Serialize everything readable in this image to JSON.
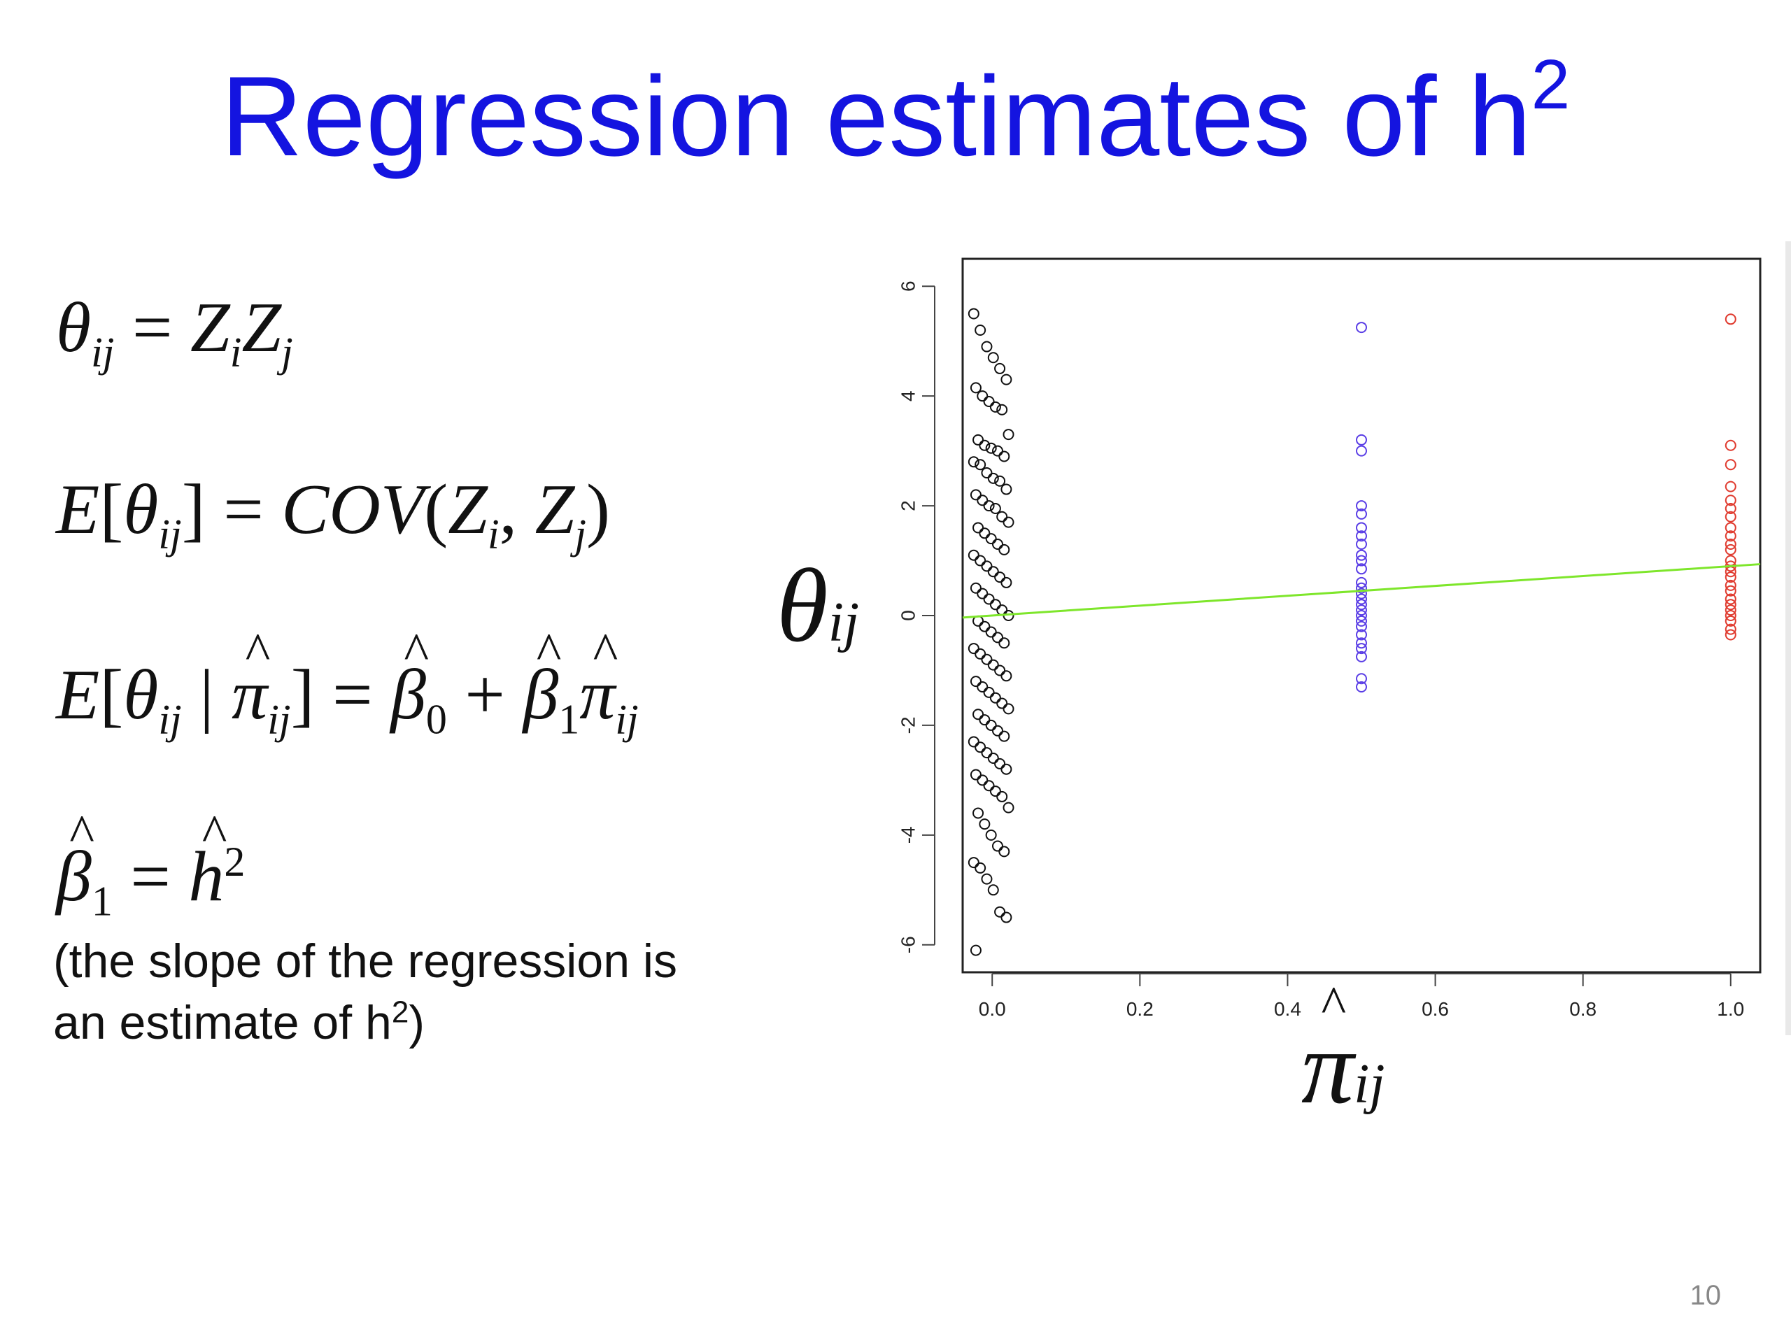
{
  "slide": {
    "title": "Regression estimates of h",
    "title_sup": "2",
    "page_number": "10",
    "equations": [
      "θij = ZiZj",
      "E[θij] = COV(Zi, Zj)",
      "E[θij | π̂ij] = β̂0 + β̂1π̂ij",
      "β̂1 = ĥ2"
    ],
    "caption": {
      "line1": "(the slope of the regression is",
      "line2_pre": "an estimate of h",
      "line2_sup": "2",
      "line2_post": ")"
    }
  },
  "chart_data": {
    "type": "scatter",
    "xlabel": "π̂ij",
    "ylabel": "θij",
    "xlim": [
      -0.04,
      1.04
    ],
    "ylim": [
      -6.5,
      6.5
    ],
    "xticks": [
      "0.0",
      "0.2",
      "0.4",
      "0.6",
      "0.8",
      "1.0"
    ],
    "yticks": [
      "-6",
      "-4",
      "-2",
      "0",
      "2",
      "4",
      "6"
    ],
    "grid": false,
    "regression_line": {
      "intercept": 0.0,
      "slope": 0.9,
      "color": "#7ee62b"
    },
    "series": [
      {
        "color": "#111111",
        "marker": "open-circle",
        "x": 0.0,
        "y": [
          5.5,
          5.2,
          4.9,
          4.7,
          4.5,
          4.3,
          4.15,
          4.0,
          3.9,
          3.8,
          3.75,
          3.3,
          3.2,
          3.1,
          3.05,
          3.0,
          2.9,
          2.8,
          2.75,
          2.6,
          2.5,
          2.45,
          2.3,
          2.2,
          2.1,
          2.0,
          1.95,
          1.8,
          1.7,
          1.6,
          1.5,
          1.4,
          1.3,
          1.2,
          1.1,
          1.0,
          0.9,
          0.8,
          0.7,
          0.6,
          0.5,
          0.4,
          0.3,
          0.2,
          0.1,
          0.0,
          -0.1,
          -0.2,
          -0.3,
          -0.4,
          -0.5,
          -0.6,
          -0.7,
          -0.8,
          -0.9,
          -1.0,
          -1.1,
          -1.2,
          -1.3,
          -1.4,
          -1.5,
          -1.6,
          -1.7,
          -1.8,
          -1.9,
          -2.0,
          -2.1,
          -2.2,
          -2.3,
          -2.4,
          -2.5,
          -2.6,
          -2.7,
          -2.8,
          -2.9,
          -3.0,
          -3.1,
          -3.2,
          -3.3,
          -3.5,
          -3.6,
          -3.8,
          -4.0,
          -4.2,
          -4.3,
          -4.5,
          -4.6,
          -4.8,
          -5.0,
          -5.4,
          -5.5,
          -6.1
        ]
      },
      {
        "color": "#5a3ee6",
        "marker": "open-circle",
        "x": 0.5,
        "y": [
          5.25,
          3.2,
          3.0,
          2.0,
          1.85,
          1.6,
          1.45,
          1.3,
          1.1,
          1.0,
          0.85,
          0.6,
          0.5,
          0.4,
          0.3,
          0.2,
          0.1,
          0.0,
          -0.1,
          -0.2,
          -0.35,
          -0.5,
          -0.6,
          -0.75,
          -1.15,
          -1.3
        ]
      },
      {
        "color": "#e03a2e",
        "marker": "open-circle",
        "x": 1.0,
        "y": [
          5.4,
          3.1,
          2.75,
          2.35,
          2.1,
          1.95,
          1.8,
          1.6,
          1.45,
          1.3,
          1.2,
          1.0,
          0.9,
          0.8,
          0.7,
          0.55,
          0.45,
          0.3,
          0.2,
          0.1,
          0.0,
          -0.1,
          -0.25,
          -0.35
        ]
      }
    ]
  }
}
